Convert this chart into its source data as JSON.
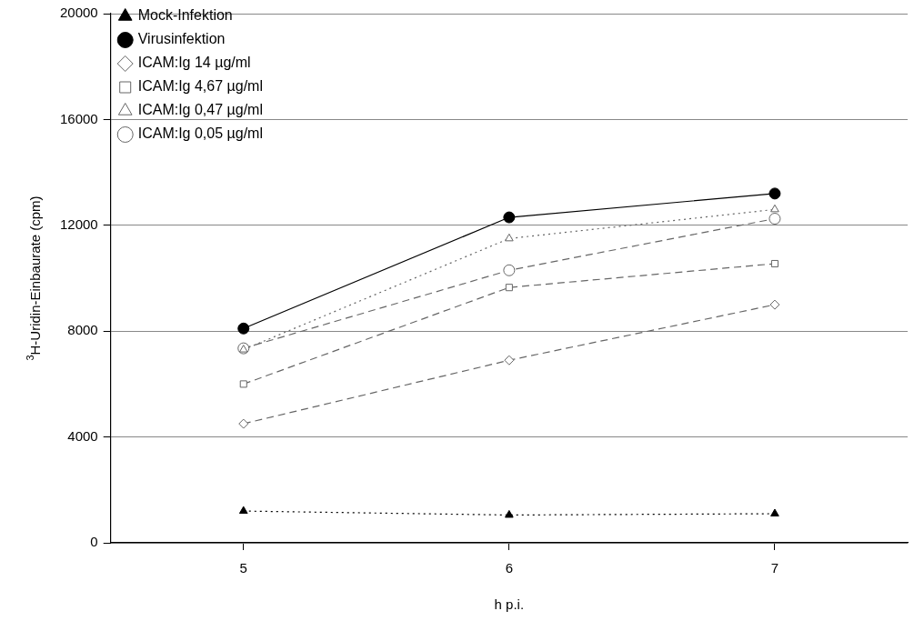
{
  "chart_data": {
    "type": "line",
    "xlabel": "h p.i.",
    "ylabel": "$^{3}$H-Uridin-Einbaurate (cpm)",
    "x": [
      5,
      6,
      7
    ],
    "xlim": [
      4.5,
      7.5
    ],
    "xticks": [
      5,
      6,
      7
    ],
    "ylim": [
      0,
      20000
    ],
    "yticks": [
      0,
      4000,
      8000,
      12000,
      16000,
      20000
    ],
    "grid": "y",
    "legend": "top left",
    "series": [
      {
        "name": "Mock-Infektion",
        "color": "#000000",
        "marker": "triangle",
        "line_style": "dotted",
        "values": [
          1200,
          1050,
          1100
        ]
      },
      {
        "name": "Virusinfektion",
        "color": "#000000",
        "marker": "circle",
        "line_style": "solid",
        "values": [
          8100,
          12300,
          13200
        ]
      },
      {
        "name": "ICAM:Ig 14 µg/ml",
        "color": "#666666",
        "marker": "diamond",
        "line_style": "dashed",
        "values": [
          4500,
          6900,
          9000
        ]
      },
      {
        "name": "ICAM:Ig 4,67 µg/ml",
        "color": "#666666",
        "marker": "square",
        "line_style": "dashed",
        "values": [
          6000,
          9650,
          10550
        ]
      },
      {
        "name": "ICAM:Ig 0,47 µg/ml",
        "color": "#666666",
        "marker": "triangle",
        "line_style": "dotted",
        "values": [
          7300,
          11500,
          12600
        ]
      },
      {
        "name": "ICAM:Ig 0,05 µg/ml",
        "color": "#666666",
        "marker": "circle",
        "line_style": "dashed",
        "values": [
          7350,
          10300,
          12250
        ]
      }
    ]
  }
}
